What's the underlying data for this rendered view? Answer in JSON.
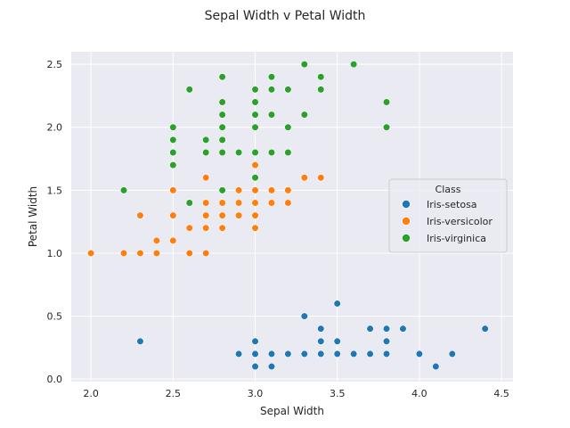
{
  "chart_data": {
    "type": "scatter",
    "title": "Sepal Width v Petal Width",
    "xlabel": "Sepal Width",
    "ylabel": "Petal Width",
    "xlim": [
      1.88,
      4.57
    ],
    "ylim": [
      -0.02,
      2.6
    ],
    "xticks": [
      "2.0",
      "2.5",
      "3.0",
      "3.5",
      "4.0",
      "4.5"
    ],
    "yticks": [
      "0.0",
      "0.5",
      "1.0",
      "1.5",
      "2.0",
      "2.5"
    ],
    "grid": true,
    "background": "#eaeaf2",
    "legend": {
      "title": "Class",
      "placement": "center-right"
    },
    "series": [
      {
        "name": "Iris-setosa",
        "color": "#1f77b4",
        "points": [
          [
            2.3,
            0.3
          ],
          [
            2.9,
            0.2
          ],
          [
            3.0,
            0.1
          ],
          [
            3.0,
            0.2
          ],
          [
            3.0,
            0.3
          ],
          [
            3.1,
            0.1
          ],
          [
            3.1,
            0.2
          ],
          [
            3.2,
            0.2
          ],
          [
            3.3,
            0.2
          ],
          [
            3.3,
            0.5
          ],
          [
            3.4,
            0.2
          ],
          [
            3.4,
            0.3
          ],
          [
            3.4,
            0.4
          ],
          [
            3.5,
            0.2
          ],
          [
            3.5,
            0.3
          ],
          [
            3.5,
            0.6
          ],
          [
            3.6,
            0.2
          ],
          [
            3.7,
            0.2
          ],
          [
            3.7,
            0.4
          ],
          [
            3.8,
            0.2
          ],
          [
            3.8,
            0.3
          ],
          [
            3.8,
            0.4
          ],
          [
            3.9,
            0.4
          ],
          [
            4.0,
            0.2
          ],
          [
            4.1,
            0.1
          ],
          [
            4.2,
            0.2
          ],
          [
            4.4,
            0.4
          ]
        ]
      },
      {
        "name": "Iris-versicolor",
        "color": "#ff7f0e",
        "points": [
          [
            2.0,
            1.0
          ],
          [
            2.2,
            1.0
          ],
          [
            2.2,
            1.5
          ],
          [
            2.3,
            1.0
          ],
          [
            2.3,
            1.3
          ],
          [
            2.4,
            1.0
          ],
          [
            2.4,
            1.1
          ],
          [
            2.5,
            1.1
          ],
          [
            2.5,
            1.3
          ],
          [
            2.5,
            1.5
          ],
          [
            2.6,
            1.0
          ],
          [
            2.6,
            1.2
          ],
          [
            2.7,
            1.0
          ],
          [
            2.7,
            1.2
          ],
          [
            2.7,
            1.3
          ],
          [
            2.7,
            1.4
          ],
          [
            2.7,
            1.6
          ],
          [
            2.8,
            1.2
          ],
          [
            2.8,
            1.3
          ],
          [
            2.8,
            1.4
          ],
          [
            2.8,
            1.5
          ],
          [
            2.9,
            1.3
          ],
          [
            2.9,
            1.4
          ],
          [
            2.9,
            1.5
          ],
          [
            3.0,
            1.2
          ],
          [
            3.0,
            1.3
          ],
          [
            3.0,
            1.4
          ],
          [
            3.0,
            1.5
          ],
          [
            3.0,
            1.7
          ],
          [
            3.1,
            1.4
          ],
          [
            3.1,
            1.5
          ],
          [
            3.2,
            1.4
          ],
          [
            3.2,
            1.5
          ],
          [
            3.3,
            1.6
          ],
          [
            3.4,
            1.6
          ]
        ]
      },
      {
        "name": "Iris-virginica",
        "color": "#2ca02c",
        "points": [
          [
            2.2,
            1.5
          ],
          [
            2.5,
            1.7
          ],
          [
            2.5,
            1.8
          ],
          [
            2.5,
            1.9
          ],
          [
            2.5,
            2.0
          ],
          [
            2.6,
            1.4
          ],
          [
            2.6,
            2.3
          ],
          [
            2.7,
            1.8
          ],
          [
            2.7,
            1.9
          ],
          [
            2.8,
            1.5
          ],
          [
            2.8,
            1.8
          ],
          [
            2.8,
            1.9
          ],
          [
            2.8,
            2.0
          ],
          [
            2.8,
            2.1
          ],
          [
            2.8,
            2.2
          ],
          [
            2.8,
            2.4
          ],
          [
            2.9,
            1.8
          ],
          [
            3.0,
            1.6
          ],
          [
            3.0,
            1.8
          ],
          [
            3.0,
            2.0
          ],
          [
            3.0,
            2.1
          ],
          [
            3.0,
            2.2
          ],
          [
            3.0,
            2.3
          ],
          [
            3.1,
            1.8
          ],
          [
            3.1,
            2.1
          ],
          [
            3.1,
            2.3
          ],
          [
            3.1,
            2.4
          ],
          [
            3.2,
            1.8
          ],
          [
            3.2,
            2.0
          ],
          [
            3.2,
            2.3
          ],
          [
            3.3,
            2.1
          ],
          [
            3.3,
            2.5
          ],
          [
            3.4,
            2.3
          ],
          [
            3.4,
            2.4
          ],
          [
            3.6,
            2.5
          ],
          [
            3.8,
            2.0
          ],
          [
            3.8,
            2.2
          ]
        ]
      }
    ]
  }
}
